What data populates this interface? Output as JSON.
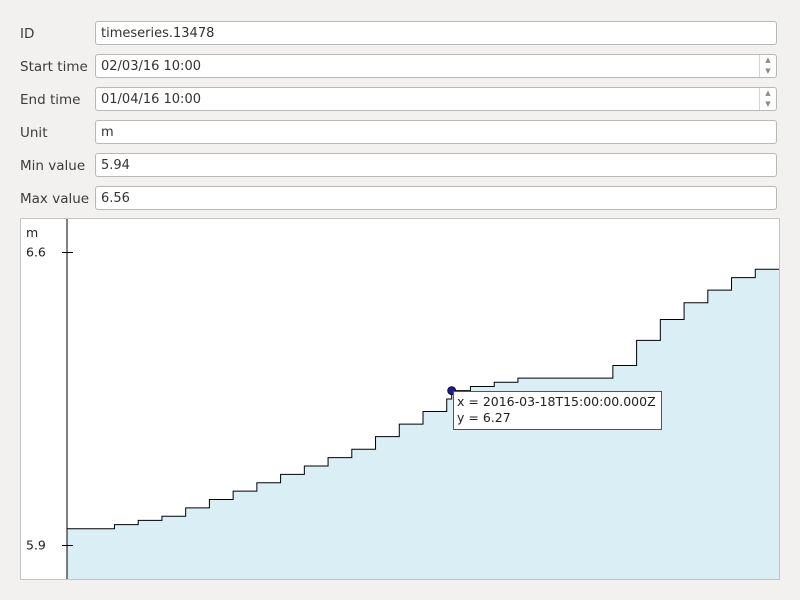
{
  "form": {
    "id_label": "ID",
    "id_value": "timeseries.13478",
    "start_label": "Start time",
    "start_value": "02/03/16 10:00",
    "end_label": "End time",
    "end_value": "01/04/16 10:00",
    "unit_label": "Unit",
    "unit_value": "m",
    "min_label": "Min value",
    "min_value": "5.94",
    "max_label": "Max value",
    "max_value": "6.56"
  },
  "icons": {
    "spin_up": "chevron-up-icon",
    "spin_down": "chevron-down-icon"
  },
  "chart_data": {
    "type": "area",
    "ylabel": "m",
    "y_ticks": [
      "6.6",
      "5.9"
    ],
    "y_tick_values": [
      6.6,
      5.9
    ],
    "ylim": [
      5.82,
      6.68
    ],
    "x_range": [
      "2016-03-02T10:00:00Z",
      "2016-04-01T10:00:00Z"
    ],
    "grid": false,
    "fill_color": "#daeef6",
    "line_color": "#000000",
    "marker_color": "#1a1a9a",
    "series": [
      {
        "x": [
          "2016-03-02T10:00:00Z",
          "2016-03-03T10:00:00Z",
          "2016-03-04T10:00:00Z",
          "2016-03-05T10:00:00Z",
          "2016-03-06T10:00:00Z",
          "2016-03-07T10:00:00Z",
          "2016-03-08T10:00:00Z",
          "2016-03-09T10:00:00Z",
          "2016-03-10T10:00:00Z",
          "2016-03-11T10:00:00Z",
          "2016-03-12T10:00:00Z",
          "2016-03-13T10:00:00Z",
          "2016-03-14T10:00:00Z",
          "2016-03-15T10:00:00Z",
          "2016-03-16T10:00:00Z",
          "2016-03-17T10:00:00Z",
          "2016-03-18T10:00:00Z",
          "2016-03-18T15:00:00Z",
          "2016-03-19T10:00:00Z",
          "2016-03-20T10:00:00Z",
          "2016-03-21T10:00:00Z",
          "2016-03-22T10:00:00Z",
          "2016-03-23T10:00:00Z",
          "2016-03-24T10:00:00Z",
          "2016-03-25T10:00:00Z",
          "2016-03-26T10:00:00Z",
          "2016-03-27T10:00:00Z",
          "2016-03-28T10:00:00Z",
          "2016-03-29T10:00:00Z",
          "2016-03-30T10:00:00Z",
          "2016-03-31T10:00:00Z",
          "2016-04-01T10:00:00Z"
        ],
        "y": [
          5.94,
          5.94,
          5.95,
          5.96,
          5.97,
          5.99,
          6.01,
          6.03,
          6.05,
          6.07,
          6.09,
          6.11,
          6.13,
          6.16,
          6.19,
          6.22,
          6.25,
          6.27,
          6.28,
          6.29,
          6.3,
          6.3,
          6.3,
          6.3,
          6.33,
          6.39,
          6.44,
          6.48,
          6.51,
          6.54,
          6.56,
          6.56
        ]
      }
    ],
    "hover_point": {
      "x": "2016-03-18T15:00:00Z",
      "y": 6.27
    },
    "tooltip_x": "x = 2016-03-18T15:00:00.000Z",
    "tooltip_y": "y = 6.27"
  }
}
